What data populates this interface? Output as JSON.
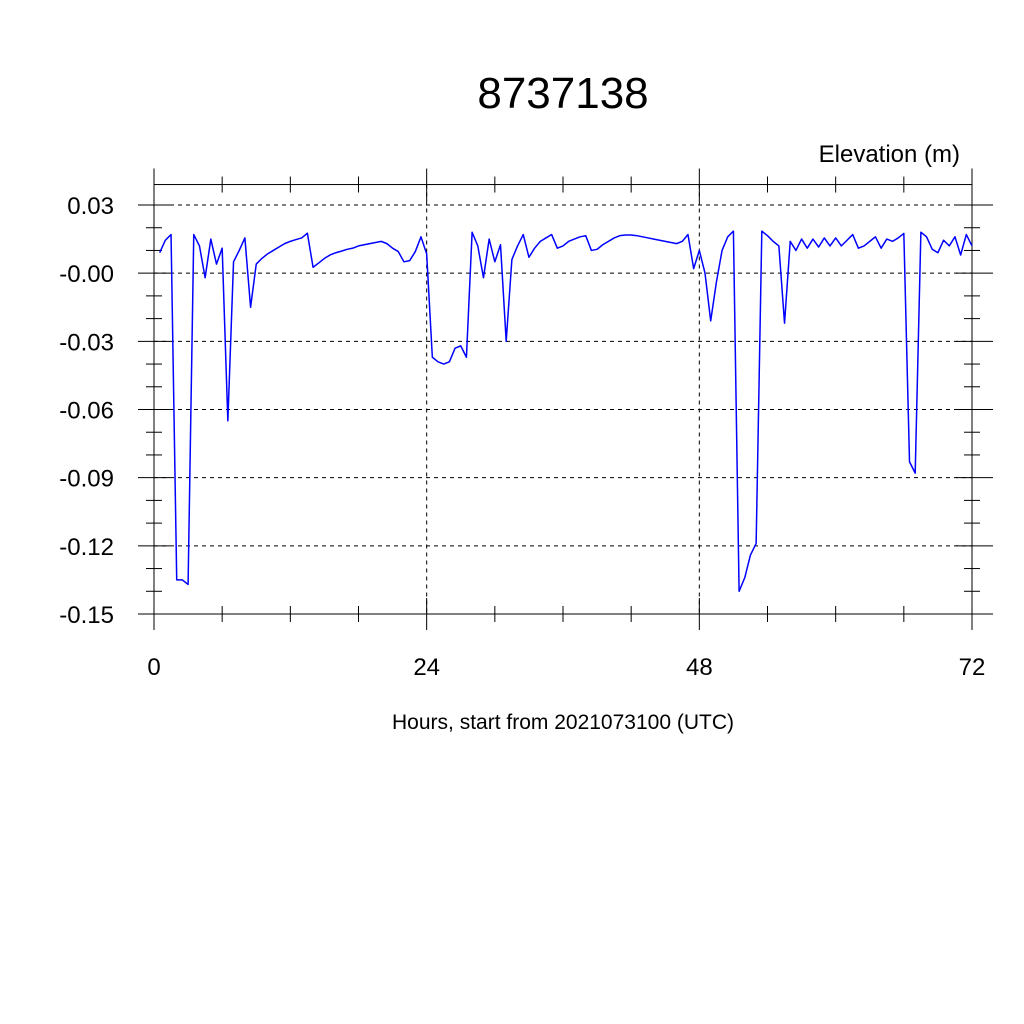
{
  "chart_data": {
    "type": "line",
    "title": "8737138",
    "y_label": "Elevation (m)",
    "x_label": "Hours, start from 2021073100 (UTC)",
    "color": "#0000ff",
    "grid": true,
    "xlim": [
      0,
      72
    ],
    "ylim": [
      -0.15,
      0.039
    ],
    "xticks": [
      0,
      24,
      48,
      72
    ],
    "yticks": [
      -0.15,
      -0.12,
      -0.09,
      -0.06,
      -0.03,
      {
        "value": 0,
        "label": "-0.00"
      },
      0.03
    ],
    "xminorticks": [
      6,
      12,
      18,
      30,
      36,
      42,
      54,
      60,
      66
    ],
    "yminorticks": [
      -0.14,
      -0.13,
      -0.11,
      -0.1,
      -0.08,
      -0.07,
      -0.05,
      -0.04,
      -0.02,
      -0.01,
      0.01,
      0.02
    ],
    "x": [
      0.5,
      1,
      1.5,
      2,
      2.5,
      3,
      3.5,
      4,
      4.5,
      5,
      5.5,
      6,
      6.5,
      7,
      7.5,
      8,
      8.5,
      9,
      9.5,
      10,
      10.5,
      11,
      11.5,
      12,
      12.5,
      13,
      13.5,
      14,
      14.5,
      15,
      15.5,
      16,
      16.5,
      17,
      17.5,
      18,
      18.5,
      19,
      19.5,
      20,
      20.5,
      21,
      21.5,
      22,
      22.5,
      23,
      23.5,
      24,
      24.5,
      25,
      25.5,
      26,
      26.5,
      27,
      27.5,
      28,
      28.5,
      29,
      29.5,
      30,
      30.5,
      31,
      31.5,
      32,
      32.5,
      33,
      33.5,
      34,
      34.5,
      35,
      35.5,
      36,
      36.5,
      37,
      37.5,
      38,
      38.5,
      39,
      39.5,
      40,
      40.5,
      41,
      41.5,
      42,
      42.5,
      43,
      43.5,
      44,
      44.5,
      45,
      45.5,
      46,
      46.5,
      47,
      47.5,
      48,
      48.5,
      49,
      49.5,
      50,
      50.5,
      51,
      51.5,
      52,
      52.5,
      53,
      53.5,
      54,
      54.5,
      55,
      55.5,
      56,
      56.5,
      57,
      57.5,
      58,
      58.5,
      59,
      59.5,
      60,
      60.5,
      61,
      61.5,
      62,
      62.5,
      63,
      63.5,
      64,
      64.5,
      65,
      65.5,
      66,
      66.5,
      67,
      67.5,
      68,
      68.5,
      69,
      69.5,
      70,
      70.5,
      71,
      71.5,
      72
    ],
    "values": [
      0.009,
      0.0145,
      0.017,
      -0.135,
      -0.135,
      -0.137,
      0.017,
      0.012,
      -0.002,
      0.015,
      0.004,
      0.011,
      -0.065,
      0.005,
      0.01,
      0.0155,
      -0.015,
      0.004,
      0.0065,
      0.0085,
      0.01,
      0.0115,
      0.013,
      0.014,
      0.0148,
      0.0155,
      0.0176,
      0.0026,
      0.0045,
      0.0065,
      0.008,
      0.009,
      0.0097,
      0.0105,
      0.011,
      0.012,
      0.0125,
      0.013,
      0.0135,
      0.014,
      0.013,
      0.011,
      0.0095,
      0.005,
      0.0055,
      0.0095,
      0.016,
      0.0085,
      -0.037,
      -0.039,
      -0.04,
      -0.039,
      -0.033,
      -0.032,
      -0.037,
      0.018,
      0.012,
      -0.002,
      0.015,
      0.005,
      0.0125,
      -0.03,
      0.006,
      0.012,
      0.017,
      0.007,
      0.011,
      0.014,
      0.0155,
      0.017,
      0.011,
      0.012,
      0.014,
      0.015,
      0.016,
      0.0165,
      0.01,
      0.0105,
      0.0125,
      0.014,
      0.0155,
      0.0165,
      0.0168,
      0.0168,
      0.0165,
      0.016,
      0.0155,
      0.015,
      0.0145,
      0.014,
      0.0135,
      0.013,
      0.014,
      0.017,
      0.002,
      0.01,
      0,
      -0.021,
      -0.004,
      0.01,
      0.016,
      0.0185,
      -0.14,
      -0.134,
      -0.124,
      -0.119,
      0.0185,
      0.0165,
      0.014,
      0.012,
      -0.022,
      0.014,
      0.01,
      0.015,
      0.011,
      0.015,
      0.0115,
      0.0155,
      0.012,
      0.0155,
      0.012,
      0.0145,
      0.017,
      0.011,
      0.012,
      0.014,
      0.016,
      0.011,
      0.015,
      0.014,
      0.0155,
      0.0175,
      -0.083,
      -0.088,
      0.018,
      0.016,
      0.0105,
      0.009,
      0.0145,
      0.012,
      0.016,
      0.008,
      0.017,
      0.012
    ]
  }
}
